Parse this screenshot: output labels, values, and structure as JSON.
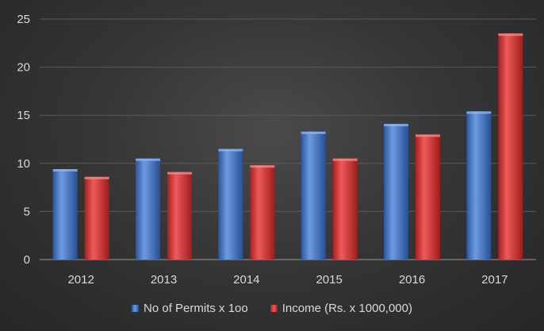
{
  "chart_data": {
    "type": "bar",
    "title": "",
    "xlabel": "",
    "ylabel": "",
    "categories": [
      "2012",
      "2013",
      "2014",
      "2015",
      "2016",
      "2017"
    ],
    "series": [
      {
        "name": "No of Permits x 1oo",
        "color": "#3f73c4",
        "values": [
          9.4,
          10.5,
          11.5,
          13.3,
          14.1,
          15.4
        ]
      },
      {
        "name": "Income (Rs. x 1000,000)",
        "color": "#d83232",
        "values": [
          8.6,
          9.1,
          9.8,
          10.5,
          13.0,
          23.5
        ]
      }
    ],
    "ylim": [
      0,
      25
    ],
    "yticks": [
      0,
      5,
      10,
      15,
      20,
      25
    ],
    "grid": true,
    "legend_position": "bottom"
  }
}
